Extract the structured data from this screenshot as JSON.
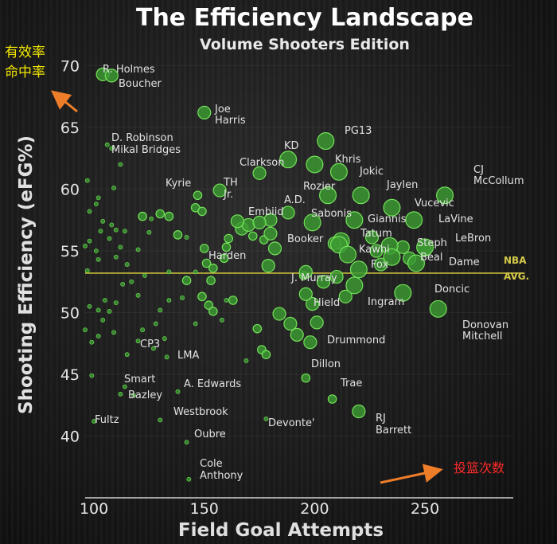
{
  "chart_data": {
    "type": "scatter",
    "title": "The Efficiency Landscape",
    "subtitle": "Volume Shooters Edition",
    "xlabel": "Field Goal Attempts",
    "ylabel": "Shooting Efficiency (eFG%)",
    "xlim": [
      96,
      290
    ],
    "ylim": [
      35,
      71
    ],
    "xticks": [
      100,
      150,
      200,
      250
    ],
    "yticks": [
      40,
      45,
      50,
      55,
      60,
      65,
      70
    ],
    "reference_line": {
      "y": 53.2,
      "label_line1": "NBA",
      "label_line2": "AVG."
    },
    "colors": {
      "point_fill": "#3c9b32",
      "point_stroke": "#74e25a"
    },
    "labeled_points": [
      {
        "x": 104,
        "y": 69.3,
        "r": 3,
        "label": "R. Holmes"
      },
      {
        "x": 108,
        "y": 69.2,
        "r": 3,
        "label": "Boucher"
      },
      {
        "x": 150,
        "y": 66.2,
        "r": 3,
        "label": "Joe"
      },
      {
        "x": 150,
        "y": 66.2,
        "r": 3,
        "label": "Harris"
      },
      {
        "x": 106,
        "y": 63.6,
        "r": 1,
        "label": "D. Robinson"
      },
      {
        "x": 108,
        "y": 63.3,
        "r": 1,
        "label": "Mikal Bridges"
      },
      {
        "x": 205,
        "y": 63.9,
        "r": 4,
        "label": "PG13"
      },
      {
        "x": 188,
        "y": 62.4,
        "r": 4,
        "label": "KD"
      },
      {
        "x": 175,
        "y": 61.3,
        "r": 3,
        "label": "Clarkson"
      },
      {
        "x": 200,
        "y": 62.0,
        "r": 4,
        "label": "Khris"
      },
      {
        "x": 211,
        "y": 61.4,
        "r": 4,
        "label": "Jokic"
      },
      {
        "x": 259,
        "y": 59.5,
        "r": 4,
        "label": "CJ"
      },
      {
        "x": 259,
        "y": 59.5,
        "r": 4,
        "label": "McCollum"
      },
      {
        "x": 147,
        "y": 59.5,
        "r": 2,
        "label": "Kyrie"
      },
      {
        "x": 157,
        "y": 59.9,
        "r": 3,
        "label": "TH"
      },
      {
        "x": 157,
        "y": 59.9,
        "r": 3,
        "label": "Jr."
      },
      {
        "x": 206,
        "y": 59.5,
        "r": 4,
        "label": "Rozier"
      },
      {
        "x": 221,
        "y": 59.5,
        "r": 4,
        "label": "Jaylen"
      },
      {
        "x": 188,
        "y": 58.1,
        "r": 3,
        "label": "A.D."
      },
      {
        "x": 175,
        "y": 57.3,
        "r": 3,
        "label": "Embiid"
      },
      {
        "x": 199,
        "y": 57.3,
        "r": 4,
        "label": "Sabonis"
      },
      {
        "x": 235,
        "y": 58.5,
        "r": 4,
        "label": "Vucevic"
      },
      {
        "x": 218,
        "y": 57.5,
        "r": 4,
        "label": "Giannis"
      },
      {
        "x": 245,
        "y": 57.5,
        "r": 4,
        "label": "LaVine"
      },
      {
        "x": 180,
        "y": 56.4,
        "r": 3,
        "label": "Booker"
      },
      {
        "x": 211,
        "y": 55.5,
        "r": 4,
        "label": "Tatum"
      },
      {
        "x": 234,
        "y": 55.4,
        "r": 4,
        "label": "Steph"
      },
      {
        "x": 250,
        "y": 55.3,
        "r": 4,
        "label": "LeBron"
      },
      {
        "x": 215,
        "y": 54.7,
        "r": 4,
        "label": "Kawhi"
      },
      {
        "x": 235,
        "y": 54.5,
        "r": 4,
        "label": "Beal"
      },
      {
        "x": 246,
        "y": 54.0,
        "r": 4,
        "label": "Dame"
      },
      {
        "x": 159,
        "y": 54.4,
        "r": 2,
        "label": "Harden"
      },
      {
        "x": 220,
        "y": 53.5,
        "r": 4,
        "label": "Fox"
      },
      {
        "x": 196,
        "y": 53.3,
        "r": 3,
        "label": "J. Murray"
      },
      {
        "x": 196,
        "y": 51.5,
        "r": 3,
        "label": "Hield"
      },
      {
        "x": 218,
        "y": 52.2,
        "r": 4,
        "label": "Ingram"
      },
      {
        "x": 240,
        "y": 51.6,
        "r": 4,
        "label": "Doncic"
      },
      {
        "x": 256,
        "y": 50.3,
        "r": 4,
        "label": "Donovan"
      },
      {
        "x": 256,
        "y": 50.3,
        "r": 4,
        "label": "Mitchell"
      },
      {
        "x": 198,
        "y": 47.6,
        "r": 3,
        "label": "Drummond"
      },
      {
        "x": 127,
        "y": 47.1,
        "r": 1,
        "label": "CP3"
      },
      {
        "x": 133,
        "y": 46.4,
        "r": 1,
        "label": "LMA"
      },
      {
        "x": 196,
        "y": 44.7,
        "r": 2,
        "label": "Dillon"
      },
      {
        "x": 208,
        "y": 43.0,
        "r": 2,
        "label": "Trae"
      },
      {
        "x": 114,
        "y": 44.0,
        "r": 1,
        "label": "Smart"
      },
      {
        "x": 118,
        "y": 43.3,
        "r": 1,
        "label": "Bazley"
      },
      {
        "x": 138,
        "y": 43.6,
        "r": 1,
        "label": "A. Edwards"
      },
      {
        "x": 130,
        "y": 41.3,
        "r": 1,
        "label": "Westbrook"
      },
      {
        "x": 178,
        "y": 41.4,
        "r": 1,
        "label": "Devonte'"
      },
      {
        "x": 220,
        "y": 42.0,
        "r": 3,
        "label": "RJ"
      },
      {
        "x": 220,
        "y": 42.0,
        "r": 3,
        "label": "Barrett"
      },
      {
        "x": 100,
        "y": 41.2,
        "r": 1,
        "label": "Fultz"
      },
      {
        "x": 142,
        "y": 39.5,
        "r": 1,
        "label": "Oubre"
      },
      {
        "x": 143,
        "y": 36.5,
        "r": 1,
        "label": "Cole"
      },
      {
        "x": 143,
        "y": 36.5,
        "r": 1,
        "label": "Anthony"
      }
    ],
    "unlabeled_points": [
      {
        "x": 97,
        "y": 60.7,
        "r": 1
      },
      {
        "x": 102,
        "y": 59.3,
        "r": 1
      },
      {
        "x": 101,
        "y": 58.8,
        "r": 1
      },
      {
        "x": 98,
        "y": 58.2,
        "r": 1
      },
      {
        "x": 104,
        "y": 57.4,
        "r": 1
      },
      {
        "x": 103,
        "y": 56.6,
        "r": 1
      },
      {
        "x": 98,
        "y": 55.8,
        "r": 1
      },
      {
        "x": 96,
        "y": 55.4,
        "r": 1
      },
      {
        "x": 101,
        "y": 55.0,
        "r": 1
      },
      {
        "x": 102,
        "y": 54.3,
        "r": 1
      },
      {
        "x": 97,
        "y": 53.4,
        "r": 1
      },
      {
        "x": 108,
        "y": 57.1,
        "r": 1
      },
      {
        "x": 110,
        "y": 56.7,
        "r": 1
      },
      {
        "x": 107,
        "y": 56.0,
        "r": 1
      },
      {
        "x": 112,
        "y": 55.3,
        "r": 1
      },
      {
        "x": 110,
        "y": 54.5,
        "r": 1
      },
      {
        "x": 114,
        "y": 56.6,
        "r": 1
      },
      {
        "x": 115,
        "y": 53.9,
        "r": 1
      },
      {
        "x": 113,
        "y": 52.3,
        "r": 1
      },
      {
        "x": 109,
        "y": 60.1,
        "r": 1
      },
      {
        "x": 112,
        "y": 62.0,
        "r": 1
      },
      {
        "x": 122,
        "y": 57.8,
        "r": 2
      },
      {
        "x": 126,
        "y": 57.6,
        "r": 1
      },
      {
        "x": 125,
        "y": 56.5,
        "r": 1
      },
      {
        "x": 120,
        "y": 55.1,
        "r": 1
      },
      {
        "x": 130,
        "y": 58.0,
        "r": 2
      },
      {
        "x": 134,
        "y": 57.8,
        "r": 2
      },
      {
        "x": 123,
        "y": 53.0,
        "r": 1
      },
      {
        "x": 134,
        "y": 53.3,
        "r": 1
      },
      {
        "x": 117,
        "y": 52.5,
        "r": 1
      },
      {
        "x": 105,
        "y": 51.0,
        "r": 1
      },
      {
        "x": 98,
        "y": 50.5,
        "r": 1
      },
      {
        "x": 102,
        "y": 50.2,
        "r": 1
      },
      {
        "x": 107,
        "y": 50.1,
        "r": 1
      },
      {
        "x": 110,
        "y": 50.8,
        "r": 1
      },
      {
        "x": 104,
        "y": 49.4,
        "r": 1
      },
      {
        "x": 96,
        "y": 48.6,
        "r": 1
      },
      {
        "x": 102,
        "y": 48.1,
        "r": 1
      },
      {
        "x": 99,
        "y": 47.6,
        "r": 1
      },
      {
        "x": 109,
        "y": 48.4,
        "r": 1
      },
      {
        "x": 115,
        "y": 46.6,
        "r": 1
      },
      {
        "x": 122,
        "y": 48.6,
        "r": 1
      },
      {
        "x": 120,
        "y": 47.7,
        "r": 1
      },
      {
        "x": 128,
        "y": 49.1,
        "r": 1
      },
      {
        "x": 132,
        "y": 47.9,
        "r": 1
      },
      {
        "x": 99,
        "y": 44.9,
        "r": 1
      },
      {
        "x": 112,
        "y": 43.4,
        "r": 1
      },
      {
        "x": 120,
        "y": 51.4,
        "r": 1
      },
      {
        "x": 130,
        "y": 50.2,
        "r": 1
      },
      {
        "x": 134,
        "y": 51.0,
        "r": 1
      },
      {
        "x": 140,
        "y": 51.2,
        "r": 1
      },
      {
        "x": 142,
        "y": 52.6,
        "r": 2
      },
      {
        "x": 146,
        "y": 53.3,
        "r": 1
      },
      {
        "x": 138,
        "y": 56.3,
        "r": 2
      },
      {
        "x": 142,
        "y": 56.1,
        "r": 1
      },
      {
        "x": 146,
        "y": 58.5,
        "r": 2
      },
      {
        "x": 149,
        "y": 58.2,
        "r": 2
      },
      {
        "x": 150,
        "y": 55.2,
        "r": 2
      },
      {
        "x": 151,
        "y": 54.0,
        "r": 2
      },
      {
        "x": 154,
        "y": 53.6,
        "r": 2
      },
      {
        "x": 153,
        "y": 52.6,
        "r": 2
      },
      {
        "x": 149,
        "y": 51.3,
        "r": 2
      },
      {
        "x": 152,
        "y": 50.6,
        "r": 2
      },
      {
        "x": 154,
        "y": 50.1,
        "r": 2
      },
      {
        "x": 160,
        "y": 51.0,
        "r": 1
      },
      {
        "x": 163,
        "y": 51.0,
        "r": 2
      },
      {
        "x": 158,
        "y": 49.4,
        "r": 1
      },
      {
        "x": 146,
        "y": 49.1,
        "r": 1
      },
      {
        "x": 160,
        "y": 55.3,
        "r": 2
      },
      {
        "x": 161,
        "y": 56.0,
        "r": 2
      },
      {
        "x": 167,
        "y": 56.8,
        "r": 3
      },
      {
        "x": 170,
        "y": 57.1,
        "r": 3
      },
      {
        "x": 165,
        "y": 57.4,
        "r": 3
      },
      {
        "x": 172,
        "y": 56.2,
        "r": 2
      },
      {
        "x": 177,
        "y": 55.9,
        "r": 2
      },
      {
        "x": 180,
        "y": 57.5,
        "r": 3
      },
      {
        "x": 182,
        "y": 55.2,
        "r": 3
      },
      {
        "x": 179,
        "y": 53.8,
        "r": 3
      },
      {
        "x": 169,
        "y": 46.1,
        "r": 1
      },
      {
        "x": 174,
        "y": 48.7,
        "r": 2
      },
      {
        "x": 176,
        "y": 47.0,
        "r": 2
      },
      {
        "x": 178,
        "y": 46.6,
        "r": 2
      },
      {
        "x": 184,
        "y": 49.9,
        "r": 3
      },
      {
        "x": 189,
        "y": 49.1,
        "r": 3
      },
      {
        "x": 192,
        "y": 48.2,
        "r": 3
      },
      {
        "x": 199,
        "y": 50.7,
        "r": 3
      },
      {
        "x": 201,
        "y": 49.2,
        "r": 3
      },
      {
        "x": 204,
        "y": 52.5,
        "r": 3
      },
      {
        "x": 210,
        "y": 52.9,
        "r": 3
      },
      {
        "x": 212,
        "y": 55.8,
        "r": 4
      },
      {
        "x": 209,
        "y": 55.6,
        "r": 3
      },
      {
        "x": 195,
        "y": 53.0,
        "r": 2
      },
      {
        "x": 214,
        "y": 51.3,
        "r": 3
      },
      {
        "x": 228,
        "y": 55.0,
        "r": 3
      },
      {
        "x": 230,
        "y": 53.9,
        "r": 3
      },
      {
        "x": 240,
        "y": 55.3,
        "r": 3
      },
      {
        "x": 243,
        "y": 54.4,
        "r": 3
      },
      {
        "x": 250,
        "y": 55.1,
        "r": 3
      },
      {
        "x": 226,
        "y": 56.1,
        "r": 3
      }
    ]
  },
  "annotations": {
    "y_note_line1": "有效率",
    "y_note_line2": "命中率",
    "x_note": "投篮次数"
  }
}
